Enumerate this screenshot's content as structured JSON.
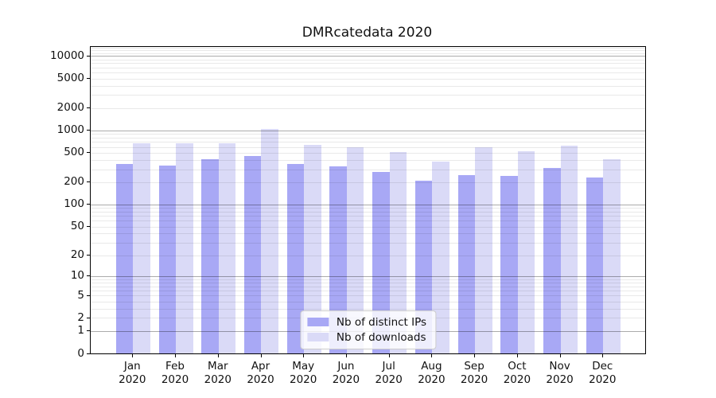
{
  "chart_data": {
    "type": "bar",
    "title": "DMRcatedata 2020",
    "categories": [
      "Jan",
      "Feb",
      "Mar",
      "Apr",
      "May",
      "Jun",
      "Jul",
      "Aug",
      "Sep",
      "Oct",
      "Nov",
      "Dec"
    ],
    "year": "2020",
    "series": [
      {
        "name": "Nb of distinct IPs",
        "color": "#a8a8f5",
        "values": [
          355,
          335,
          410,
          455,
          355,
          330,
          278,
          212,
          250,
          245,
          315,
          229
        ]
      },
      {
        "name": "Nb of downloads",
        "color": "#dadaf7",
        "values": [
          670,
          670,
          670,
          1050,
          642,
          586,
          510,
          380,
          586,
          523,
          627,
          410
        ]
      }
    ],
    "y_axis": {
      "scale": "log1p",
      "ticks": [
        0,
        1,
        2,
        5,
        10,
        20,
        50,
        100,
        200,
        500,
        1000,
        2000,
        5000,
        10000
      ],
      "top_value": 13200
    },
    "legend": {
      "position": "lower center"
    },
    "grid": {
      "major_color": "#ababab",
      "minor_color": "#e9e9e9",
      "major_at": "powers of 10",
      "minor_at": "2-9 per decade",
      "extra_minor_lines": [
        11000,
        12000,
        13000
      ]
    }
  }
}
